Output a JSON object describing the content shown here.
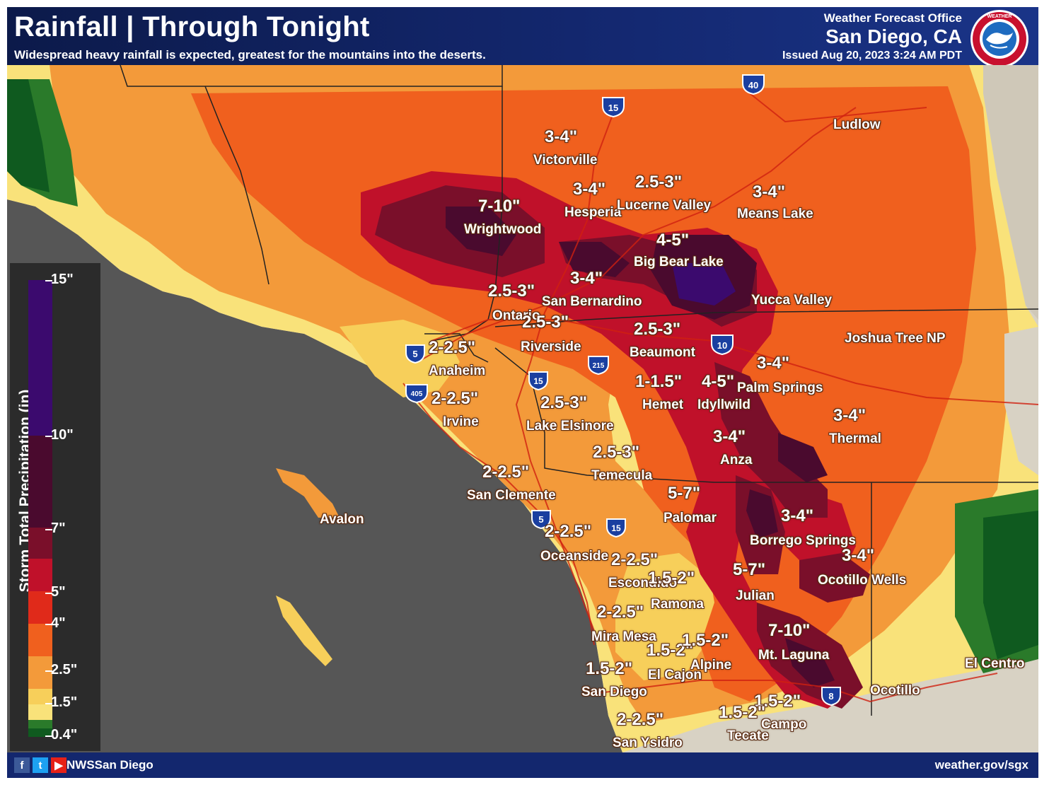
{
  "header": {
    "title": "Rainfall | Through Tonight",
    "subtitle": "Widespread heavy rainfall is expected, greatest for the mountains into the deserts.",
    "office": "Weather Forecast Office",
    "city": "San Diego, CA",
    "issued": "Issued Aug 20, 2023 3:24 AM PDT",
    "logo_icon": "noaa-nws-logo-icon"
  },
  "legend": {
    "title": "Storm Total Precipitation (in)",
    "ticks": [
      "15\"",
      "10\"",
      "7\"",
      "5\"",
      "4\"",
      "2.5\"",
      "1.5\"",
      "0.4\""
    ],
    "colors": [
      "#3b0a6e",
      "#4a0a2e",
      "#7a0f2a",
      "#c0112a",
      "#e02a1a",
      "#f0601e",
      "#f39a3a",
      "#f7cf5a",
      "#f9e27a",
      "#2a7a2a",
      "#0f5a1f"
    ]
  },
  "labels": [
    {
      "amount": "3-4\"",
      "place": "Victorville"
    },
    {
      "amount": "3-4\"",
      "place": "Hesperia"
    },
    {
      "amount": "2.5-3\"",
      "place": "Lucerne Valley"
    },
    {
      "amount": "3-4\"",
      "place": "Means Lake"
    },
    {
      "amount": "7-10\"",
      "place": "Wrightwood"
    },
    {
      "amount": "4-5\"",
      "place": "Big Bear Lake"
    },
    {
      "amount": "3-4\"",
      "place": "San Bernardino"
    },
    {
      "amount": "2.5-3\"",
      "place": "Ontario"
    },
    {
      "amount": "2.5-3\"",
      "place": "Riverside"
    },
    {
      "amount": "2.5-3\"",
      "place": "Beaumont"
    },
    {
      "amount": "2-2.5\"",
      "place": "Anaheim"
    },
    {
      "amount": "2-2.5\"",
      "place": "Irvine"
    },
    {
      "amount": "2.5-3\"",
      "place": "Lake Elsinore"
    },
    {
      "amount": "1-1.5\"",
      "place": "Hemet"
    },
    {
      "amount": "4-5\"",
      "place": "Idyllwild"
    },
    {
      "amount": "3-4\"",
      "place": "Palm Springs"
    },
    {
      "amount": "3-4\"",
      "place": "Thermal"
    },
    {
      "amount": "3-4\"",
      "place": "Anza"
    },
    {
      "amount": "2.5-3\"",
      "place": "Temecula"
    },
    {
      "amount": "2-2.5\"",
      "place": "San Clemente"
    },
    {
      "amount": "5-7\"",
      "place": "Palomar"
    },
    {
      "amount": "3-4\"",
      "place": "Borrego Springs"
    },
    {
      "amount": "2-2.5\"",
      "place": "Oceanside"
    },
    {
      "amount": "2-2.5\"",
      "place": "Escondido"
    },
    {
      "amount": "1.5-2\"",
      "place": "Ramona"
    },
    {
      "amount": "5-7\"",
      "place": "Julian"
    },
    {
      "amount": "3-4\"",
      "place": "Ocotillo Wells"
    },
    {
      "amount": "2-2.5\"",
      "place": "Mira Mesa"
    },
    {
      "amount": "7-10\"",
      "place": "Mt. Laguna"
    },
    {
      "amount": "1.5-2\"",
      "place": "El Cajon"
    },
    {
      "amount": "1.5-2\"",
      "place": "Alpine"
    },
    {
      "amount": "1.5-2\"",
      "place": "San Diego"
    },
    {
      "amount": "1.5-2\"",
      "place": "Campo"
    },
    {
      "amount": "1.5-2\"",
      "place": "Tecate"
    },
    {
      "amount": "2-2.5\"",
      "place": "San Ysidro"
    }
  ],
  "places_only": [
    "Ludlow",
    "Yucca Valley",
    "Joshua Tree NP",
    "Avalon",
    "El Centro",
    "Ocotillo"
  ],
  "shields": [
    "40",
    "15",
    "10",
    "5",
    "405",
    "15",
    "215",
    "5",
    "15",
    "8"
  ],
  "footer": {
    "handle": "NWSSan Diego",
    "website": "weather.gov/sgx",
    "social_icons": [
      "facebook-icon",
      "twitter-icon",
      "youtube-icon"
    ]
  }
}
